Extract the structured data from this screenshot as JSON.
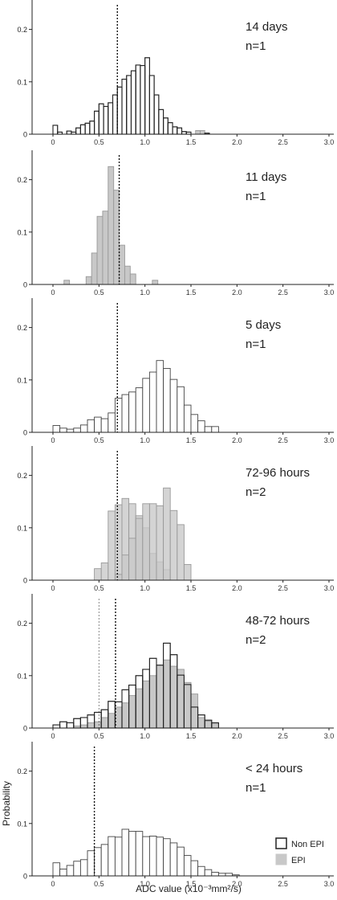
{
  "figure": {
    "ylabel": "Probability",
    "xlabel": "ADC value (x10⁻³mm²/s)",
    "legend": {
      "items": [
        {
          "label": "Non EPI",
          "color": "#ffffff"
        },
        {
          "label": "EPI",
          "color": "#c8c8c8"
        }
      ],
      "placement": "bottom-right"
    }
  },
  "colors": {
    "nonepi_fill": "#ffffff",
    "epi_fill": "#c8c8c8",
    "overlap_fill": "#a0a0a0",
    "edge": "#444444",
    "reference_line": "#111111"
  },
  "chart_data": [
    {
      "type": "bar",
      "title": "14 days",
      "subtitle": "n=1",
      "xlim": [
        0,
        3.0
      ],
      "ylim": [
        0,
        0.25
      ],
      "xticks": [
        "0",
        "0.5",
        "1.0",
        "1.5",
        "2.0",
        "2.5",
        "3.0"
      ],
      "yticks": [
        "0",
        "0.1",
        "0.2"
      ],
      "grid": false,
      "bin_width": 0.05,
      "reference_lines": [
        0.7
      ],
      "series": [
        {
          "style": "nonepi",
          "start": 0.0,
          "values": [
            0.017,
            0.004,
            0.0,
            0.006,
            0.004,
            0.012,
            0.018,
            0.021,
            0.025,
            0.044,
            0.058,
            0.053,
            0.06,
            0.075,
            0.09,
            0.105,
            0.112,
            0.121,
            0.132,
            0.131,
            0.146,
            0.112,
            0.075,
            0.047,
            0.031,
            0.022,
            0.014,
            0.012,
            0.005,
            0.004,
            0.0,
            0.0,
            0.0,
            0.002
          ]
        },
        {
          "style": "epi",
          "start": 1.55,
          "values": [
            0.007,
            0.007
          ]
        }
      ]
    },
    {
      "type": "bar",
      "title": "11 days",
      "subtitle": "n=1",
      "xlim": [
        0,
        3.0
      ],
      "ylim": [
        0,
        0.25
      ],
      "xticks": [
        "0",
        "0.5",
        "1.0",
        "1.5",
        "2.0",
        "2.5",
        "3.0"
      ],
      "yticks": [
        "0",
        "0.1",
        "0.2"
      ],
      "grid": false,
      "bin_width": 0.06,
      "reference_lines": [
        0.72
      ],
      "series": [
        {
          "style": "epi",
          "start": 0.12,
          "values": [
            0.008,
            0.0,
            0.0,
            0.0,
            0.015,
            0.06,
            0.13,
            0.14,
            0.225,
            0.18,
            0.075,
            0.035,
            0.02,
            0.0,
            0.0,
            0.0,
            0.008
          ]
        }
      ]
    },
    {
      "type": "bar",
      "title": "5 days",
      "subtitle": "n=1",
      "xlim": [
        0,
        3.0
      ],
      "ylim": [
        0,
        0.25
      ],
      "xticks": [
        "0",
        "0.5",
        "1.0",
        "1.5",
        "2.0",
        "2.5",
        "3.0"
      ],
      "yticks": [
        "0",
        "0.1",
        "0.2"
      ],
      "grid": false,
      "bin_width": 0.075,
      "reference_lines": [
        0.7
      ],
      "series": [
        {
          "style": "nonepi",
          "start": 0.0,
          "values": [
            0.013,
            0.008,
            0.006,
            0.008,
            0.014,
            0.024,
            0.029,
            0.026,
            0.037,
            0.065,
            0.072,
            0.077,
            0.085,
            0.103,
            0.115,
            0.137,
            0.122,
            0.101,
            0.087,
            0.052,
            0.034,
            0.022,
            0.011,
            0.011
          ]
        }
      ]
    },
    {
      "type": "bar",
      "title": "72-96 hours",
      "subtitle": "n=2",
      "xlim": [
        0,
        3.0
      ],
      "ylim": [
        0,
        0.25
      ],
      "xticks": [
        "0",
        "0.5",
        "1.0",
        "1.5",
        "2.0",
        "2.5",
        "3.0"
      ],
      "yticks": [
        "0",
        "0.1",
        "0.2"
      ],
      "grid": false,
      "bin_width": 0.075,
      "reference_lines": [
        0.7
      ],
      "series": [
        {
          "style": "epi",
          "start": 0.45,
          "values": [
            0.022,
            0.033,
            0.132,
            0.144,
            0.156,
            0.146,
            0.123,
            0.1,
            0.051,
            0.035,
            0.02,
            0.0,
            0.0,
            0.0
          ]
        },
        {
          "style": "epi",
          "start": 0.6,
          "values": [
            0.0,
            0.011,
            0.048,
            0.08,
            0.118,
            0.146,
            0.146,
            0.142,
            0.176,
            0.133,
            0.106,
            0.03,
            0.0
          ]
        }
      ]
    },
    {
      "type": "bar",
      "title": "48-72 hours",
      "subtitle": "n=2",
      "xlim": [
        0,
        3.0
      ],
      "ylim": [
        0,
        0.25
      ],
      "xticks": [
        "0",
        "0.5",
        "1.0",
        "1.5",
        "2.0",
        "2.5",
        "3.0"
      ],
      "yticks": [
        "0",
        "0.1",
        "0.2"
      ],
      "grid": false,
      "bin_width": 0.075,
      "reference_lines": [
        0.5,
        0.68
      ],
      "series": [
        {
          "style": "nonepi",
          "start": 0.0,
          "values": [
            0.006,
            0.012,
            0.01,
            0.018,
            0.02,
            0.025,
            0.03,
            0.035,
            0.051,
            0.05,
            0.073,
            0.082,
            0.1,
            0.112,
            0.133,
            0.12,
            0.162,
            0.14,
            0.101,
            0.083,
            0.04,
            0.025,
            0.015,
            0.01
          ]
        },
        {
          "style": "epi",
          "start": 0.0,
          "values": [
            0.0,
            0.0,
            0.0,
            0.004,
            0.006,
            0.01,
            0.012,
            0.02,
            0.028,
            0.04,
            0.048,
            0.062,
            0.075,
            0.09,
            0.1,
            0.12,
            0.13,
            0.118,
            0.112,
            0.087,
            0.065,
            0.02,
            0.013,
            0.008
          ]
        }
      ]
    },
    {
      "type": "bar",
      "title": "< 24 hours",
      "subtitle": "n=1",
      "xlim": [
        0,
        3.0
      ],
      "ylim": [
        0,
        0.25
      ],
      "xticks": [
        "0",
        "0.5",
        "1.0",
        "1.5",
        "2.0",
        "2.5",
        "3.0"
      ],
      "yticks": [
        "0",
        "0.1",
        "0.2"
      ],
      "grid": false,
      "bin_width": 0.075,
      "reference_lines": [
        0.45
      ],
      "series": [
        {
          "style": "nonepi",
          "start": 0.0,
          "values": [
            0.025,
            0.013,
            0.02,
            0.028,
            0.031,
            0.048,
            0.054,
            0.06,
            0.075,
            0.074,
            0.089,
            0.085,
            0.085,
            0.075,
            0.076,
            0.074,
            0.071,
            0.063,
            0.055,
            0.039,
            0.029,
            0.018,
            0.012,
            0.007,
            0.005,
            0.005,
            0.002
          ]
        }
      ]
    }
  ]
}
